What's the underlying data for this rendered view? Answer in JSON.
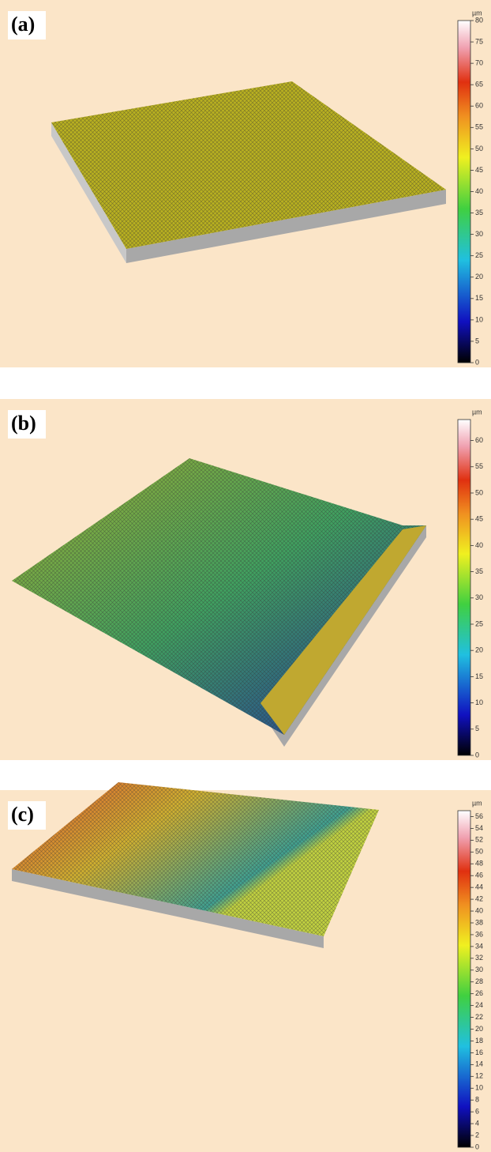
{
  "panels": [
    {
      "label": "(a)",
      "unit": "µm",
      "colorbar": {
        "lim": [
          0,
          80
        ],
        "ticks": [
          0,
          5,
          10,
          15,
          20,
          25,
          30,
          35,
          40,
          45,
          50,
          55,
          60,
          65,
          70,
          75,
          80
        ]
      }
    },
    {
      "label": "(b)",
      "unit": "µm",
      "colorbar": {
        "lim": [
          0,
          64
        ],
        "ticks": [
          0,
          5,
          10,
          15,
          20,
          25,
          30,
          35,
          40,
          45,
          50,
          55,
          60
        ]
      }
    },
    {
      "label": "(c)",
      "unit": "µm",
      "colorbar": {
        "lim": [
          0,
          57
        ],
        "ticks": [
          0,
          2,
          4,
          6,
          8,
          10,
          12,
          14,
          16,
          18,
          20,
          22,
          24,
          26,
          28,
          30,
          32,
          34,
          36,
          38,
          40,
          42,
          44,
          46,
          48,
          50,
          52,
          54,
          56
        ]
      }
    }
  ]
}
